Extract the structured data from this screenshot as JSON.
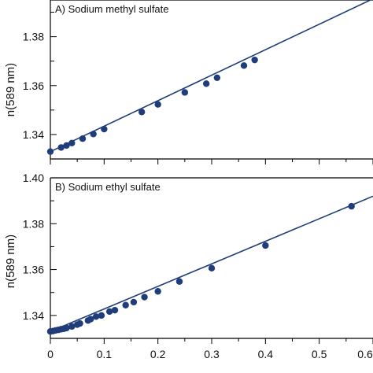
{
  "chart_data": [
    {
      "type": "scatter",
      "title": "A) Sodium methyl sulfate",
      "xlabel": "",
      "ylabel": "n(589 nm)",
      "xlim": [
        0,
        0.6
      ],
      "ylim": [
        1.33,
        1.395
      ],
      "yticks": [
        "1.34",
        "1.36",
        "1.38"
      ],
      "xticks": [
        "",
        "",
        "",
        "",
        "",
        "",
        ""
      ],
      "grid": false,
      "color": "#1f3d7a",
      "points": [
        [
          0.0,
          1.333
        ],
        [
          0.02,
          1.3347
        ],
        [
          0.03,
          1.3355
        ],
        [
          0.04,
          1.3365
        ],
        [
          0.06,
          1.3383
        ],
        [
          0.08,
          1.3402
        ],
        [
          0.1,
          1.3422
        ],
        [
          0.17,
          1.3492
        ],
        [
          0.2,
          1.3523
        ],
        [
          0.25,
          1.3572
        ],
        [
          0.29,
          1.3608
        ],
        [
          0.31,
          1.3632
        ],
        [
          0.36,
          1.3682
        ],
        [
          0.38,
          1.3705
        ]
      ],
      "fit_line": [
        [
          0.0,
          1.333
        ],
        [
          0.6,
          1.3955
        ]
      ]
    },
    {
      "type": "scatter",
      "title": "B) Sodium ethyl sulfate",
      "xlabel": "",
      "ylabel": "n(589 nm)",
      "xlim": [
        0,
        0.6
      ],
      "ylim": [
        1.33,
        1.4
      ],
      "yticks": [
        "1.34",
        "1.36",
        "1.38",
        "1.40"
      ],
      "xticks": [
        "0",
        "0.1",
        "0.2",
        "0.3",
        "0.4",
        "0.5",
        "0.6"
      ],
      "grid": false,
      "color": "#1f3d7a",
      "points": [
        [
          0.0,
          1.333
        ],
        [
          0.005,
          1.3332
        ],
        [
          0.01,
          1.3335
        ],
        [
          0.015,
          1.3337
        ],
        [
          0.02,
          1.334
        ],
        [
          0.025,
          1.3342
        ],
        [
          0.03,
          1.3345
        ],
        [
          0.04,
          1.3352
        ],
        [
          0.05,
          1.336
        ],
        [
          0.055,
          1.3365
        ],
        [
          0.07,
          1.3378
        ],
        [
          0.075,
          1.3384
        ],
        [
          0.085,
          1.3395
        ],
        [
          0.095,
          1.34
        ],
        [
          0.11,
          1.3417
        ],
        [
          0.12,
          1.3423
        ],
        [
          0.14,
          1.3445
        ],
        [
          0.155,
          1.3458
        ],
        [
          0.175,
          1.348
        ],
        [
          0.2,
          1.3505
        ],
        [
          0.24,
          1.3548
        ],
        [
          0.3,
          1.3606
        ],
        [
          0.4,
          1.3705
        ],
        [
          0.56,
          1.3876
        ]
      ],
      "fit_line": [
        [
          0.0,
          1.333
        ],
        [
          0.6,
          1.392
        ]
      ]
    }
  ]
}
